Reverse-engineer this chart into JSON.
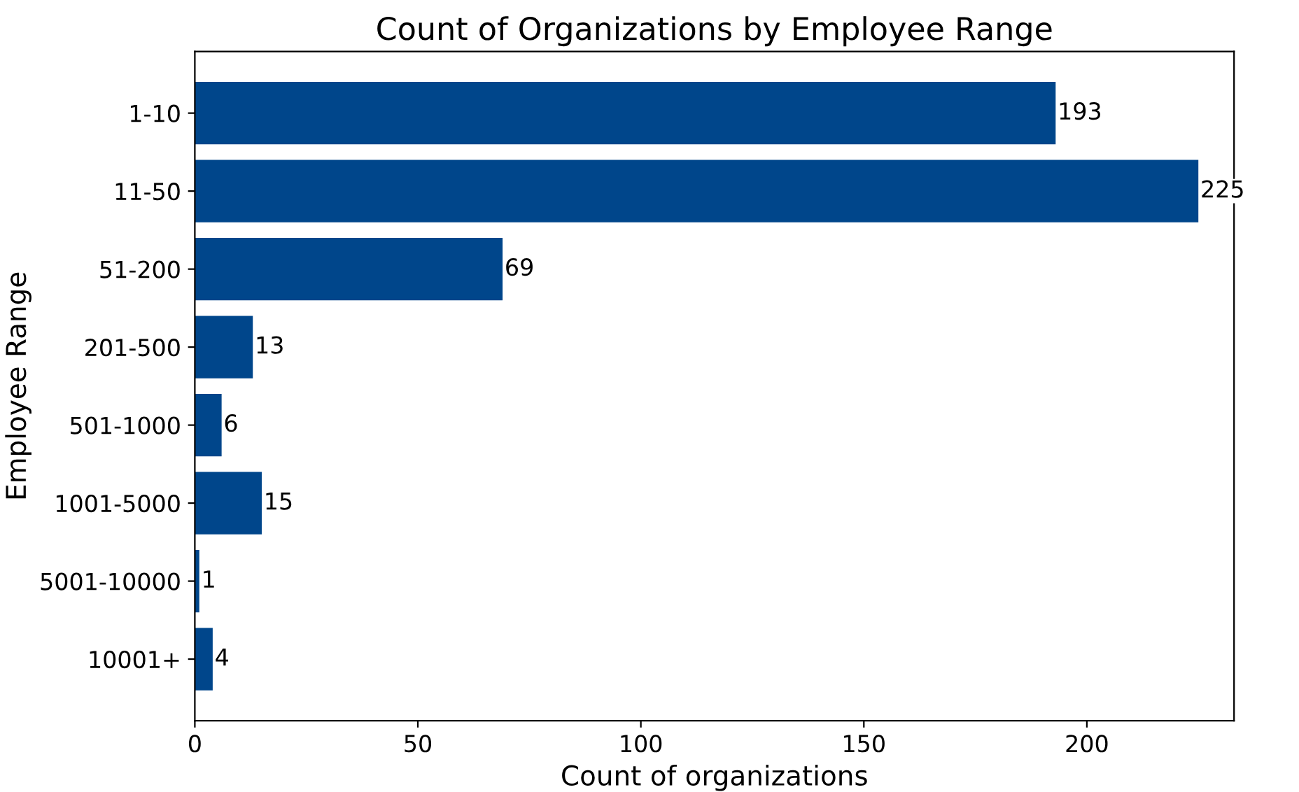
{
  "chart_data": {
    "type": "bar",
    "orientation": "horizontal",
    "title": "Count of Organizations by Employee Range",
    "xlabel": "Count of organizations",
    "ylabel": "Employee Range",
    "categories": [
      "1-10",
      "11-50",
      "51-200",
      "201-500",
      "501-1000",
      "1001-5000",
      "5001-10000",
      "10001+"
    ],
    "values": [
      193,
      225,
      69,
      13,
      6,
      15,
      1,
      4
    ],
    "color": "#00468b",
    "xlim": [
      0,
      233
    ],
    "xticks": [
      0,
      50,
      100,
      150,
      200
    ],
    "data_labels": true,
    "grid": false,
    "legend": false
  }
}
